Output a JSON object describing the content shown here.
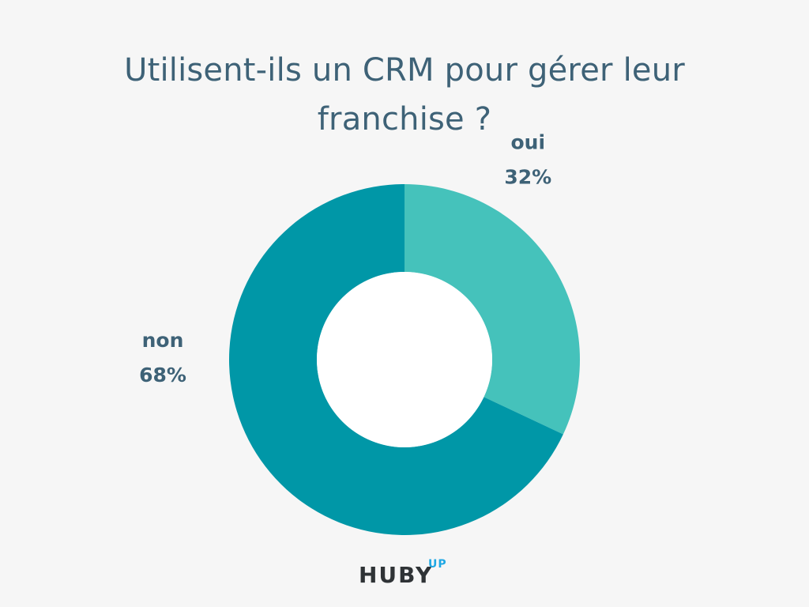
{
  "title": {
    "line1": "Utilisent-ils un CRM pour gérer leur",
    "line2": "franchise ?"
  },
  "chart_data": {
    "type": "pie",
    "variant": "donut",
    "title": "Utilisent-ils un CRM pour gérer leur franchise ?",
    "slices": [
      {
        "label": "oui",
        "value": 32,
        "display": "32%",
        "color": "#45c2bb"
      },
      {
        "label": "non",
        "value": 68,
        "display": "68%",
        "color": "#0097a7"
      }
    ],
    "start": "top",
    "direction": "clockwise",
    "legend": "none"
  },
  "brand": {
    "logo_text": "HUBY",
    "logo_superscript": "UP",
    "colors": {
      "text": "#2f3336",
      "accent": "#1fa8e4"
    }
  },
  "colors": {
    "background": "#f6f6f6",
    "title": "#3e6277",
    "label": "#3e6277",
    "hole": "#ffffff"
  }
}
